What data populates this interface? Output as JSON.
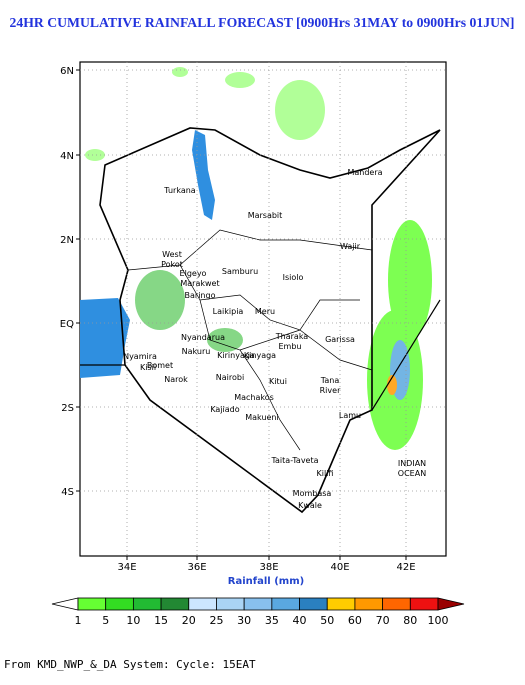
{
  "title": "24HR CUMULATIVE RAINFALL FORECAST [0900Hrs 31MAY to 0900Hrs 01JUN]",
  "lat_ticks": [
    "6N",
    "4N",
    "2N",
    "EQ",
    "2S",
    "4S"
  ],
  "lon_ticks": [
    "34E",
    "36E",
    "38E",
    "40E",
    "42E"
  ],
  "places": [
    "Mandera",
    "Turkana",
    "Marsabit",
    "Wajir",
    [
      "West",
      "Pokot"
    ],
    "Samburu",
    "Isiolo",
    "Elgeyo",
    "Marakwet",
    "Baringo",
    "Laikipia",
    "Meru",
    "Tharaka",
    "Embu",
    "Garissa",
    "Nyandarua",
    "Nakuru",
    "Kirinyaga",
    "Kinyaga",
    "Nairobi",
    "Narok",
    "Bomet",
    "Kisii",
    "Nyamira",
    "Kitui",
    "Machakos",
    "Kajiado",
    "Makueni",
    [
      "Tana",
      "River"
    ],
    "Lamu",
    "Taita-Taveta",
    "Kilifi",
    "Mombasa",
    "Kwale",
    [
      "INDIAN",
      "OCEAN"
    ]
  ],
  "x_axis_label": "Rainfall (mm)",
  "colorbar": {
    "labels": [
      1,
      5,
      10,
      15,
      20,
      25,
      30,
      35,
      40,
      50,
      60,
      70,
      80,
      100
    ],
    "colors": [
      "#ffffff",
      "#66ff33",
      "#33dd22",
      "#22bb33",
      "#228833",
      "#cce6ff",
      "#aad4f5",
      "#88c0ee",
      "#5aa8e0",
      "#2a80c0",
      "#ffcc00",
      "#ff9900",
      "#ff6600",
      "#ee1111",
      "#990000"
    ]
  },
  "footer": "From KMD_NWP_&_DA System: Cycle: 15EAT"
}
